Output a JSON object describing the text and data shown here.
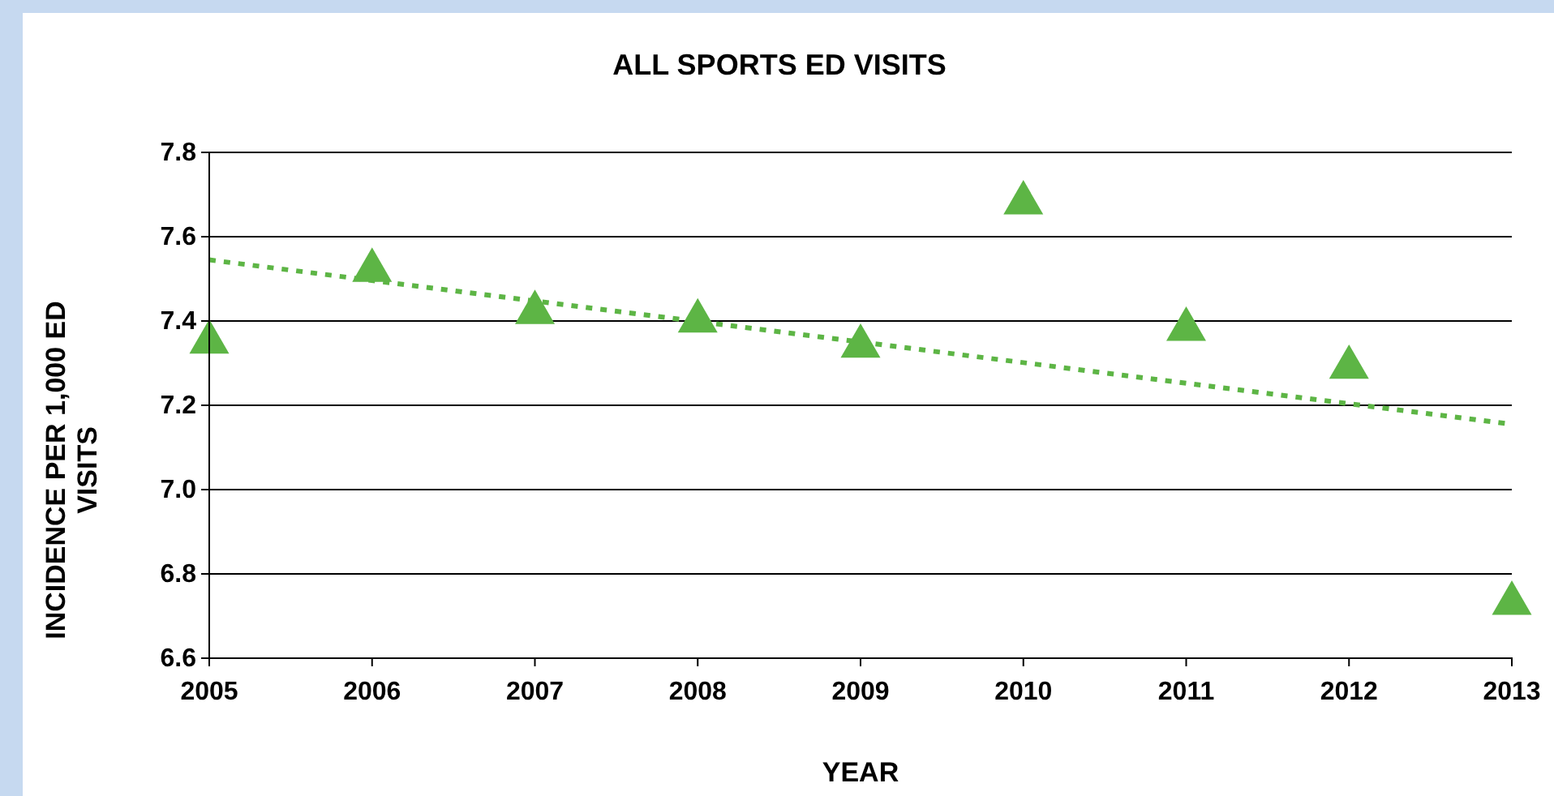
{
  "chart_data": {
    "type": "scatter",
    "title": "ALL SPORTS ED VISITS",
    "xlabel": "YEAR",
    "ylabel": "INCIDENCE PER 1,000 ED VISITS",
    "x": [
      2005,
      2006,
      2007,
      2008,
      2009,
      2010,
      2011,
      2012,
      2013
    ],
    "xlim": [
      2005,
      2013
    ],
    "xticks": [
      2005,
      2006,
      2007,
      2008,
      2009,
      2010,
      2011,
      2012,
      2013
    ],
    "ylim": [
      6.6,
      7.8
    ],
    "yticks": [
      {
        "value": 6.6,
        "label": "6.6"
      },
      {
        "value": 6.8,
        "label": "6.8"
      },
      {
        "value": 7.0,
        "label": "7.0"
      },
      {
        "value": 7.2,
        "label": "7.2"
      },
      {
        "value": 7.4,
        "label": "7.4"
      },
      {
        "value": 7.6,
        "label": "7.6"
      },
      {
        "value": 7.8,
        "label": "7.8"
      }
    ],
    "grid": "y",
    "series": [
      {
        "color": "#5db545",
        "marker": "triangle",
        "values": [
          7.35,
          7.52,
          7.42,
          7.4,
          7.34,
          7.68,
          7.38,
          7.29,
          6.73
        ]
      },
      {
        "type": "line",
        "color": "#5db545",
        "line_style": "dotted",
        "marker": "none",
        "x": [
          2005,
          2013
        ],
        "values": [
          7.545,
          7.155
        ]
      }
    ]
  }
}
